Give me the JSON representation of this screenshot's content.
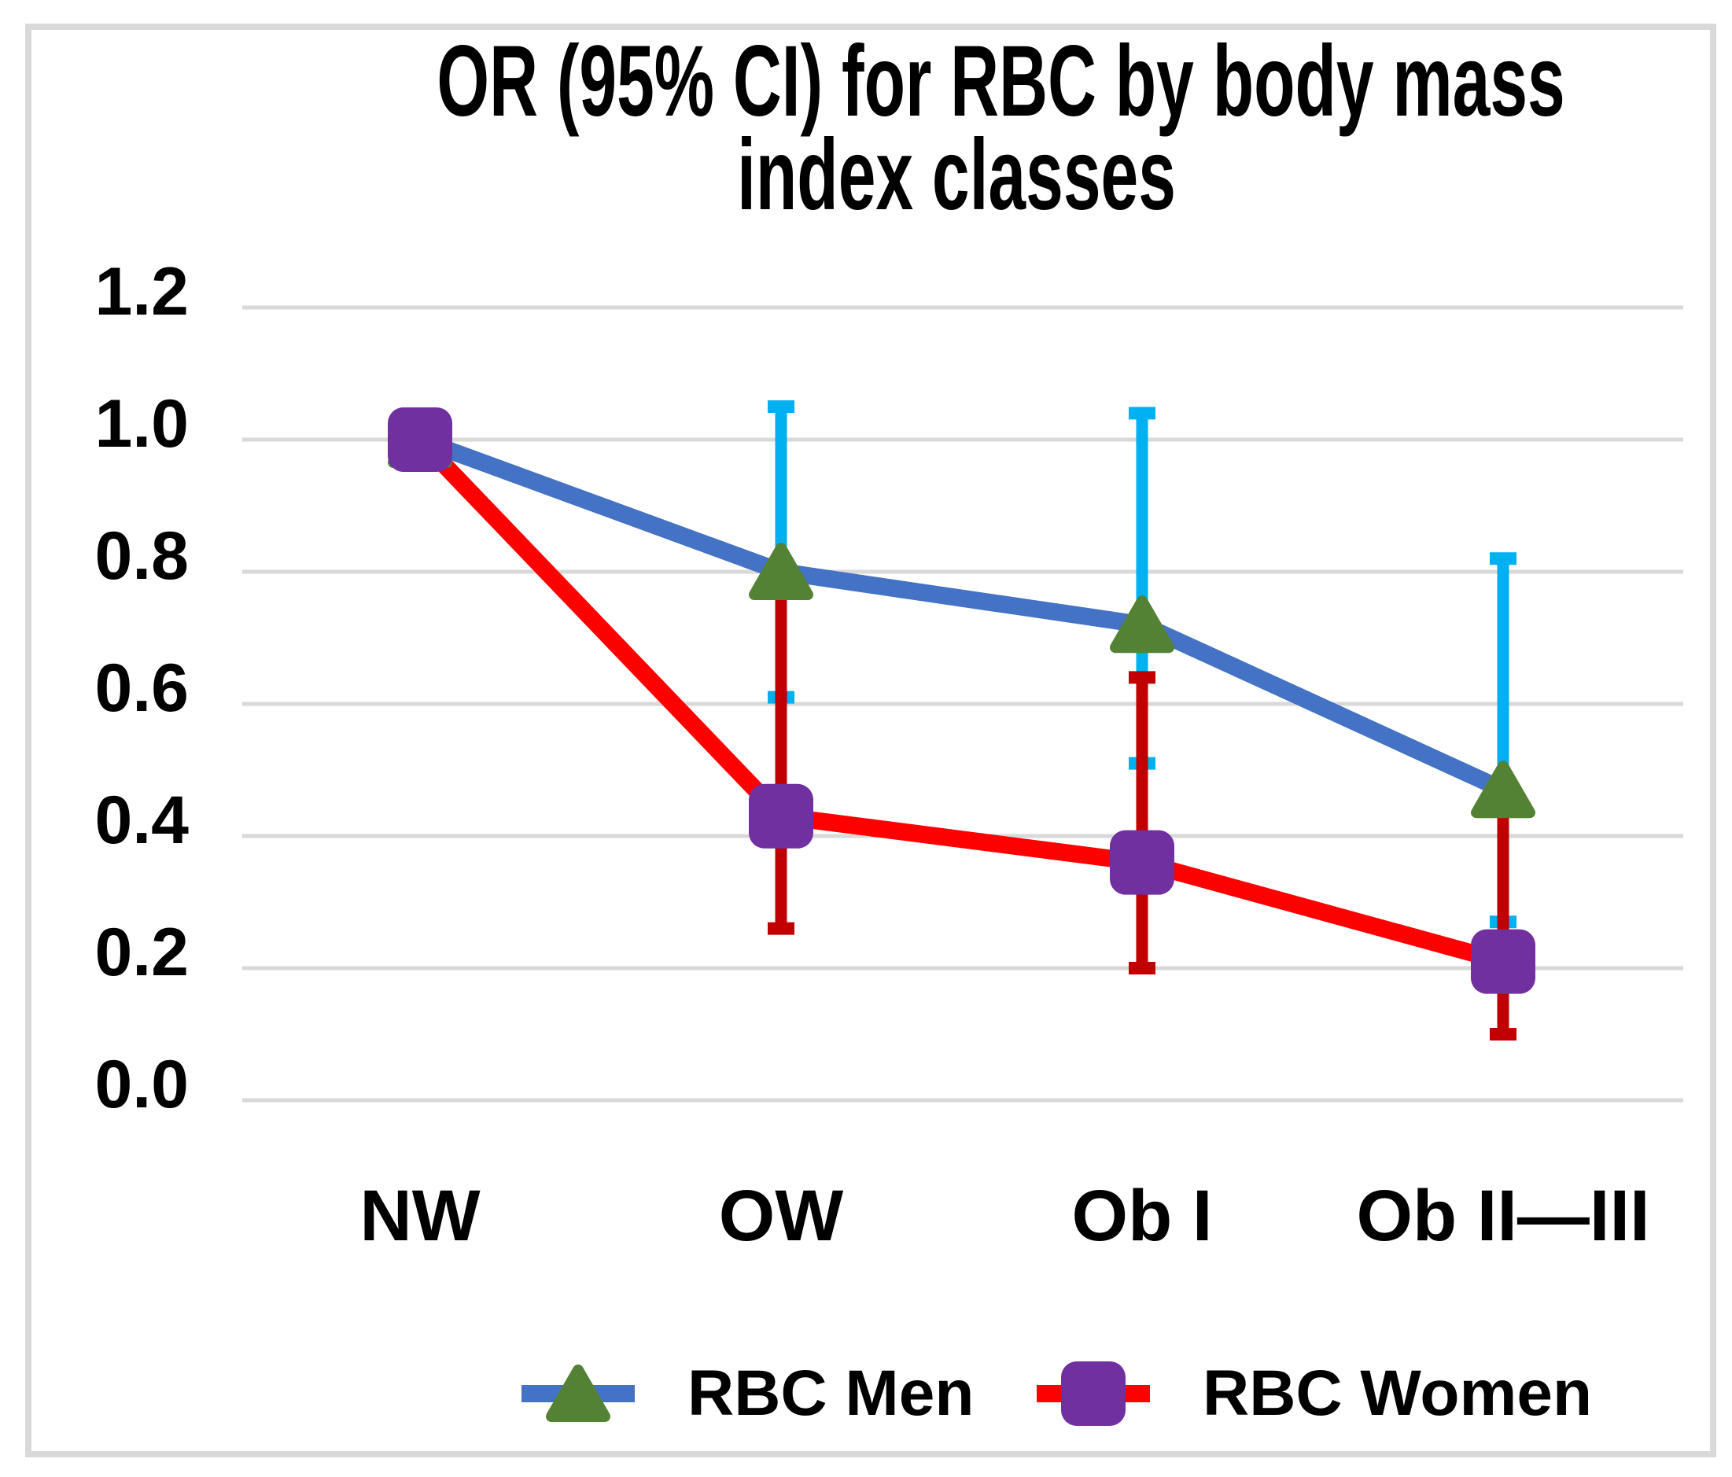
{
  "title": {
    "line1": "OR (95% CI) for RBC by body mass",
    "line2": "index classes"
  },
  "chart_data": {
    "type": "line",
    "title": "OR (95% CI) for RBC by body mass index classes",
    "categories": [
      "NW",
      "OW",
      "Ob I",
      "Ob II—III"
    ],
    "yticks": [
      "1.2",
      "1.0",
      "0.8",
      "0.6",
      "0.4",
      "0.2",
      "0.0"
    ],
    "ylim": [
      0.0,
      1.2
    ],
    "ytick_step": 0.2,
    "grid": true,
    "legend_position": "bottom",
    "series": [
      {
        "name": "RBC Men",
        "marker": "triangle",
        "line_color": "#4472C4",
        "marker_color": "#548235",
        "error_color": "#00B0F0",
        "values": [
          1.0,
          0.8,
          0.72,
          0.47
        ],
        "ci_lower": [
          null,
          0.61,
          0.51,
          0.27
        ],
        "ci_upper": [
          null,
          1.05,
          1.04,
          0.82
        ]
      },
      {
        "name": "RBC Women",
        "marker": "square",
        "line_color": "#FF0000",
        "marker_color": "#7030A0",
        "error_color": "#C00000",
        "values": [
          1.0,
          0.43,
          0.36,
          0.21
        ],
        "ci_lower": [
          null,
          0.26,
          0.2,
          0.1
        ],
        "ci_upper": [
          null,
          0.78,
          0.64,
          0.45
        ]
      }
    ]
  },
  "colors": {
    "gridline": "#D9D9D9",
    "border": "#D9D9D9",
    "background": "#FFFFFF",
    "text": "#000000"
  }
}
